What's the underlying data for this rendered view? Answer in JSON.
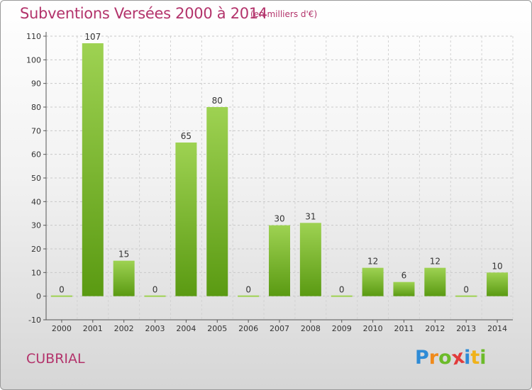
{
  "header": {
    "title": "Subventions Versées 2000 à 2014",
    "subtitle": "(en milliers d'€)"
  },
  "footer": {
    "commune": "CUBRIAL",
    "logo_letters": [
      "P",
      "r",
      "o",
      "x",
      "i",
      "t",
      "i"
    ],
    "logo_colors": [
      "#2e8bd6",
      "#f08a1a",
      "#6cbb2a",
      "#e23b3b",
      "#2e8bd6",
      "#f0b21a",
      "#6cbb2a"
    ]
  },
  "chart_data": {
    "type": "bar",
    "title": "Subventions Versées 2000 à 2014",
    "subtitle": "(en milliers d'€)",
    "categories": [
      "2000",
      "2001",
      "2002",
      "2003",
      "2004",
      "2005",
      "2006",
      "2007",
      "2008",
      "2009",
      "2010",
      "2011",
      "2012",
      "2013",
      "2014"
    ],
    "values": [
      0,
      107,
      15,
      0,
      65,
      80,
      0,
      30,
      31,
      0,
      12,
      6,
      12,
      0,
      10
    ],
    "ylim": [
      -10,
      110
    ],
    "yticks": [
      -10,
      0,
      10,
      20,
      30,
      40,
      50,
      60,
      70,
      80,
      90,
      100,
      110
    ],
    "xlabel": "",
    "ylabel": "",
    "grid": true,
    "bar_color_light": "#9ed252",
    "bar_color_dark": "#5a9a12"
  }
}
